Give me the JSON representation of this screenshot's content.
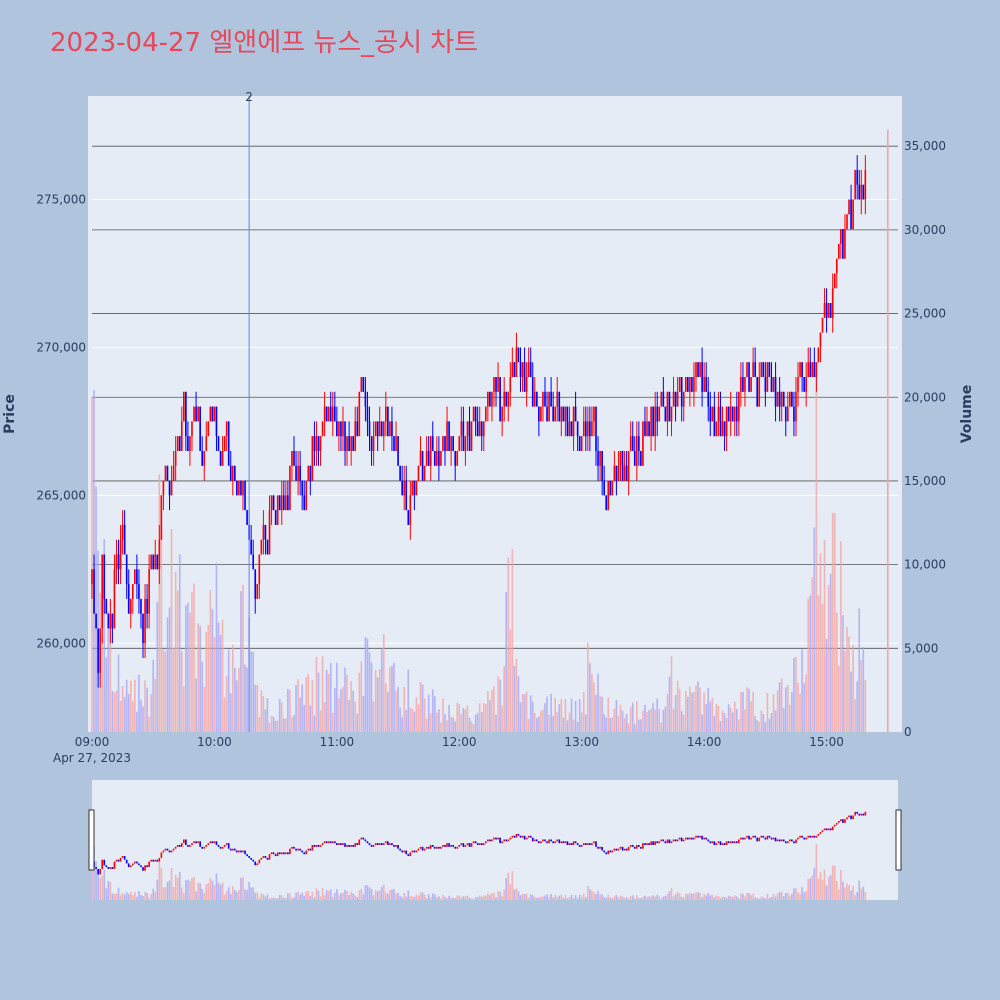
{
  "title": "2023-04-27 엘앤에프 뉴스_공시 차트",
  "colors": {
    "background": "#b0c4de",
    "plot_bg": "#e5ecf6",
    "up": "#ff0000",
    "down": "#0000ff",
    "title": "#e8475a",
    "marker": "#6a7fe8",
    "grid_dark": "#555555"
  },
  "chart_data": {
    "type": "candlestick",
    "ylabel": "Price",
    "y2label": "Volume",
    "x_ticks": [
      "09:00",
      "10:00",
      "11:00",
      "12:00",
      "13:00",
      "14:00",
      "15:00"
    ],
    "x_date_label": "Apr 27, 2023",
    "y_ticks": [
      260000,
      265000,
      270000,
      275000
    ],
    "y_tick_labels": [
      "260,000",
      "265,000",
      "270,000",
      "275,000"
    ],
    "ylim": [
      257000,
      278500
    ],
    "y2_ticks": [
      0,
      5000,
      10000,
      15000,
      20000,
      25000,
      30000,
      35000
    ],
    "y2_tick_labels": [
      "0",
      "5,000",
      "10,000",
      "15,000",
      "20,000",
      "25,000",
      "30,000",
      "35,000"
    ],
    "y2lim": [
      0,
      38000
    ],
    "xlim_minutes": [
      0,
      395
    ],
    "marker_line": {
      "time": "10:17",
      "label": "2"
    },
    "price_path": [
      [
        "09:00",
        262000
      ],
      [
        "09:03",
        259500
      ],
      [
        "09:05",
        262500
      ],
      [
        "09:08",
        260000
      ],
      [
        "09:12",
        262500
      ],
      [
        "09:15",
        263500
      ],
      [
        "09:18",
        261000
      ],
      [
        "09:22",
        262500
      ],
      [
        "09:25",
        260500
      ],
      [
        "09:28",
        262000
      ],
      [
        "09:32",
        262500
      ],
      [
        "09:35",
        265500
      ],
      [
        "09:38",
        265000
      ],
      [
        "09:42",
        266500
      ],
      [
        "09:45",
        268000
      ],
      [
        "09:48",
        266000
      ],
      [
        "09:50",
        268500
      ],
      [
        "09:53",
        266500
      ],
      [
        "09:57",
        267000
      ],
      [
        "10:00",
        267500
      ],
      [
        "10:03",
        266000
      ],
      [
        "10:06",
        267000
      ],
      [
        "10:08",
        265500
      ],
      [
        "10:12",
        265500
      ],
      [
        "10:15",
        264500
      ],
      [
        "10:18",
        263000
      ],
      [
        "10:20",
        262000
      ],
      [
        "10:24",
        263500
      ],
      [
        "10:28",
        264500
      ],
      [
        "10:32",
        265000
      ],
      [
        "10:36",
        265500
      ],
      [
        "10:40",
        266000
      ],
      [
        "10:44",
        265000
      ],
      [
        "10:48",
        266500
      ],
      [
        "10:52",
        267000
      ],
      [
        "10:56",
        268000
      ],
      [
        "11:00",
        267500
      ],
      [
        "11:04",
        266500
      ],
      [
        "11:08",
        267000
      ],
      [
        "11:12",
        268500
      ],
      [
        "11:16",
        267500
      ],
      [
        "11:20",
        267000
      ],
      [
        "11:24",
        267500
      ],
      [
        "11:28",
        266500
      ],
      [
        "11:32",
        265500
      ],
      [
        "11:35",
        264500
      ],
      [
        "11:38",
        265500
      ],
      [
        "11:42",
        266000
      ],
      [
        "11:46",
        266500
      ],
      [
        "11:50",
        266500
      ],
      [
        "11:55",
        267000
      ],
      [
        "12:00",
        266500
      ],
      [
        "12:05",
        267000
      ],
      [
        "12:10",
        267500
      ],
      [
        "12:15",
        268000
      ],
      [
        "12:20",
        268000
      ],
      [
        "12:25",
        268500
      ],
      [
        "12:28",
        270000
      ],
      [
        "12:32",
        269000
      ],
      [
        "12:36",
        268500
      ],
      [
        "12:40",
        268000
      ],
      [
        "12:45",
        268000
      ],
      [
        "12:50",
        267500
      ],
      [
        "12:55",
        267500
      ],
      [
        "13:00",
        267000
      ],
      [
        "13:05",
        267500
      ],
      [
        "13:08",
        266000
      ],
      [
        "13:12",
        265000
      ],
      [
        "13:16",
        265500
      ],
      [
        "13:20",
        266000
      ],
      [
        "13:25",
        266500
      ],
      [
        "13:30",
        267000
      ],
      [
        "13:35",
        267500
      ],
      [
        "13:40",
        268000
      ],
      [
        "13:45",
        268000
      ],
      [
        "13:50",
        268500
      ],
      [
        "13:55",
        269000
      ],
      [
        "14:00",
        268500
      ],
      [
        "14:05",
        267500
      ],
      [
        "14:10",
        267500
      ],
      [
        "14:15",
        268000
      ],
      [
        "14:20",
        269000
      ],
      [
        "14:25",
        268500
      ],
      [
        "14:30",
        269000
      ],
      [
        "14:35",
        268500
      ],
      [
        "14:40",
        268000
      ],
      [
        "14:45",
        268500
      ],
      [
        "14:50",
        269000
      ],
      [
        "14:55",
        269500
      ],
      [
        "14:58",
        270500
      ],
      [
        "15:02",
        271500
      ],
      [
        "15:05",
        273000
      ],
      [
        "15:08",
        273500
      ],
      [
        "15:10",
        275000
      ],
      [
        "15:12",
        274500
      ],
      [
        "15:14",
        276000
      ],
      [
        "15:17",
        275000
      ],
      [
        "15:19",
        275500
      ]
    ],
    "volume_profile": [
      [
        "09:00",
        22000
      ],
      [
        "09:02",
        18000
      ],
      [
        "09:05",
        12500
      ],
      [
        "09:10",
        5000
      ],
      [
        "09:15",
        4500
      ],
      [
        "09:20",
        3500
      ],
      [
        "09:25",
        3000
      ],
      [
        "09:30",
        4000
      ],
      [
        "09:33",
        21500
      ],
      [
        "09:35",
        5500
      ],
      [
        "09:40",
        12000
      ],
      [
        "09:45",
        8000
      ],
      [
        "09:50",
        8500
      ],
      [
        "09:55",
        4000
      ],
      [
        "10:00",
        10500
      ],
      [
        "10:05",
        5000
      ],
      [
        "10:10",
        4500
      ],
      [
        "10:15",
        9500
      ],
      [
        "10:20",
        3000
      ],
      [
        "10:25",
        2000
      ],
      [
        "10:30",
        2000
      ],
      [
        "10:40",
        3000
      ],
      [
        "10:50",
        4000
      ],
      [
        "11:00",
        4000
      ],
      [
        "11:10",
        3000
      ],
      [
        "11:15",
        5500
      ],
      [
        "11:20",
        6000
      ],
      [
        "11:30",
        3000
      ],
      [
        "11:40",
        3500
      ],
      [
        "11:50",
        2000
      ],
      [
        "12:00",
        1500
      ],
      [
        "12:10",
        2000
      ],
      [
        "12:20",
        3000
      ],
      [
        "12:25",
        12300
      ],
      [
        "12:28",
        4000
      ],
      [
        "12:35",
        2500
      ],
      [
        "12:45",
        2000
      ],
      [
        "12:55",
        2000
      ],
      [
        "13:00",
        2000
      ],
      [
        "13:05",
        6600
      ],
      [
        "13:10",
        2500
      ],
      [
        "13:20",
        2000
      ],
      [
        "13:30",
        1500
      ],
      [
        "13:40",
        2000
      ],
      [
        "13:45",
        4500
      ],
      [
        "13:50",
        3000
      ],
      [
        "14:00",
        2500
      ],
      [
        "14:10",
        2000
      ],
      [
        "14:20",
        2500
      ],
      [
        "14:30",
        2000
      ],
      [
        "14:40",
        3000
      ],
      [
        "14:50",
        5500
      ],
      [
        "14:55",
        19000
      ],
      [
        "15:00",
        8000
      ],
      [
        "15:05",
        15000
      ],
      [
        "15:08",
        9000
      ],
      [
        "15:12",
        7500
      ],
      [
        "15:15",
        6500
      ],
      [
        "15:19",
        7000
      ],
      [
        "15:30",
        36000
      ]
    ]
  }
}
